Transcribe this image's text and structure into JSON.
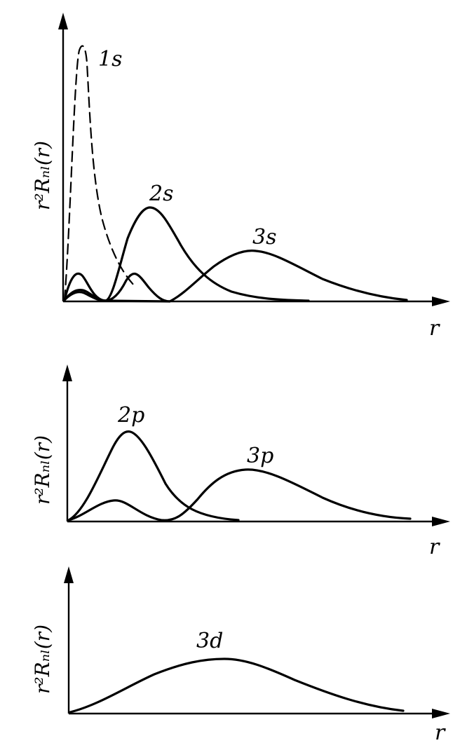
{
  "chart_data": [
    {
      "type": "line",
      "ylabel": "r²Rₙₗ(r)",
      "xlabel": "r",
      "series": [
        {
          "name": "1s",
          "style": "dashed",
          "x": [
            0,
            0.1,
            0.3,
            0.5,
            0.7,
            1,
            1.5,
            2,
            2.5,
            3,
            3.5,
            4
          ],
          "values": [
            0,
            0.05,
            0.25,
            0.7,
            0.95,
            0.9,
            0.6,
            0.4,
            0.27,
            0.18,
            0.12,
            0.07
          ]
        },
        {
          "name": "",
          "style": "solid",
          "x": [
            0,
            0.3,
            0.6,
            1,
            1.5,
            2,
            2.5,
            3,
            3.5,
            4,
            4.5,
            5,
            5.5,
            6,
            6.5,
            7,
            7.5,
            8
          ],
          "values": [
            0,
            0.06,
            0.075,
            0.06,
            0.02,
            0,
            0.05,
            0.18,
            0.32,
            0.36,
            0.33,
            0.25,
            0.15,
            0.08,
            0.04,
            0.02,
            0.008,
            0
          ]
        },
        {
          "name": "2s",
          "style": "solid",
          "x": [
            0,
            0.3,
            0.6,
            1,
            1.4,
            1.8,
            2.2,
            2.6,
            3,
            3.5,
            4,
            4.5,
            5,
            5.5,
            6,
            6.5,
            7,
            8,
            9,
            10,
            11,
            12,
            13,
            14,
            15,
            16,
            17
          ],
          "values": [
            0,
            0.07,
            0.11,
            0.1,
            0.06,
            0.02,
            0,
            0.02,
            0.07,
            0.1,
            0.08,
            0.04,
            0.01,
            0,
            0.02,
            0.06,
            0.1,
            0.17,
            0.23,
            0.26,
            0.25,
            0.21,
            0.15,
            0.09,
            0.05,
            0.02,
            0
          ]
        },
        {
          "name": "3s",
          "style": "solid",
          "x": [
            0,
            0.5,
            1,
            1.5,
            2,
            2.5,
            3,
            3.5,
            4,
            4.5,
            5,
            5.5,
            6,
            7,
            8,
            9,
            10,
            11,
            12,
            13,
            14,
            15,
            16,
            17
          ],
          "values": [
            0,
            0.04,
            0.06,
            0.05,
            0.02,
            0,
            0.01,
            0.04,
            0.06,
            0.05,
            0.03,
            0.01,
            0,
            0.05,
            0.15,
            0.22,
            0.25,
            0.23,
            0.18,
            0.12,
            0.07,
            0.03,
            0.01,
            0
          ]
        }
      ],
      "annotations": [
        "1s",
        "2s",
        "3s"
      ]
    },
    {
      "type": "line",
      "ylabel": "r²Rₙₗ(r)",
      "xlabel": "r",
      "series": [
        {
          "name": "2p",
          "style": "solid",
          "x": [
            0,
            1,
            2,
            3,
            4,
            5,
            6,
            7,
            8
          ],
          "values": [
            0,
            0.3,
            0.75,
            0.95,
            0.8,
            0.5,
            0.25,
            0.1,
            0.02
          ]
        },
        {
          "name": "3p",
          "style": "solid",
          "x": [
            0,
            1,
            2,
            3,
            4,
            5,
            6,
            7,
            8,
            9,
            10,
            11,
            12,
            13,
            14,
            15,
            16,
            17,
            18
          ],
          "values": [
            0,
            0.12,
            0.22,
            0.15,
            0.05,
            0,
            0.08,
            0.3,
            0.55,
            0.7,
            0.75,
            0.72,
            0.6,
            0.45,
            0.3,
            0.18,
            0.08,
            0.03,
            0.01
          ]
        }
      ],
      "annotations": [
        "2p",
        "3p"
      ]
    },
    {
      "type": "line",
      "ylabel": "r²Rₙₗ(r)",
      "xlabel": "r",
      "series": [
        {
          "name": "3d",
          "style": "solid",
          "x": [
            0,
            2,
            4,
            6,
            8,
            10,
            12,
            14,
            16,
            18,
            20
          ],
          "values": [
            0,
            0.1,
            0.35,
            0.7,
            0.95,
            1.0,
            0.85,
            0.6,
            0.35,
            0.15,
            0.05
          ]
        }
      ],
      "annotations": [
        "3d"
      ]
    }
  ]
}
